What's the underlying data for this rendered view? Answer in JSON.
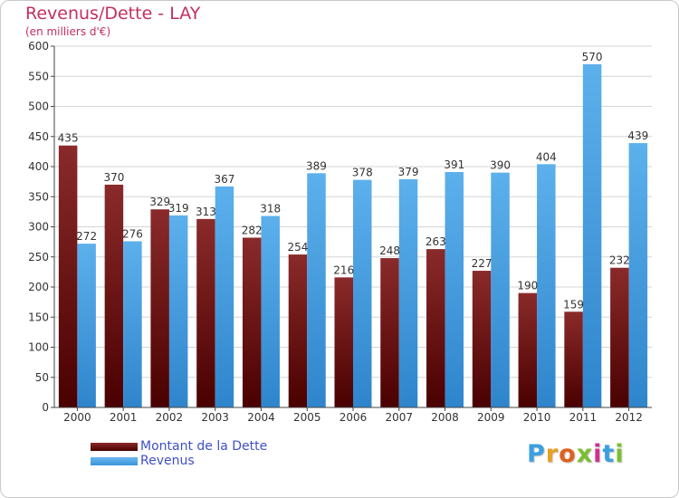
{
  "title": "Revenus/Dette - LAY",
  "subtitle": "(en milliers d'€)",
  "colors": {
    "debt": "#6e1616",
    "revenue": "#4aa5e6",
    "title": "#c2305e",
    "legend_text": "#4050c8"
  },
  "chart_data": {
    "type": "bar",
    "categories": [
      "2000",
      "2001",
      "2002",
      "2003",
      "2004",
      "2005",
      "2006",
      "2007",
      "2008",
      "2009",
      "2010",
      "2011",
      "2012"
    ],
    "series": [
      {
        "name": "Montant de la Dette",
        "values": [
          435,
          370,
          329,
          313,
          282,
          254,
          216,
          248,
          263,
          227,
          190,
          159,
          232
        ]
      },
      {
        "name": "Revenus",
        "values": [
          272,
          276,
          319,
          367,
          318,
          389,
          378,
          379,
          391,
          390,
          404,
          570,
          439
        ]
      }
    ],
    "yticks": [
      0,
      50,
      100,
      150,
      200,
      250,
      300,
      350,
      400,
      450,
      500,
      550,
      600
    ],
    "ylim": [
      0,
      600
    ],
    "grid": true,
    "legend_position": "bottom-left"
  },
  "legend": {
    "items": [
      {
        "label": "Montant de la Dette"
      },
      {
        "label": "Revenus"
      }
    ]
  },
  "logo": {
    "letters": [
      "P",
      "r",
      "o",
      "x",
      "i",
      "t",
      "i"
    ],
    "colors": [
      "#3aa0e0",
      "#e8a020",
      "#e06020",
      "#7abf30",
      "#d03090",
      "#3aa0e0",
      "#7abf30"
    ]
  }
}
